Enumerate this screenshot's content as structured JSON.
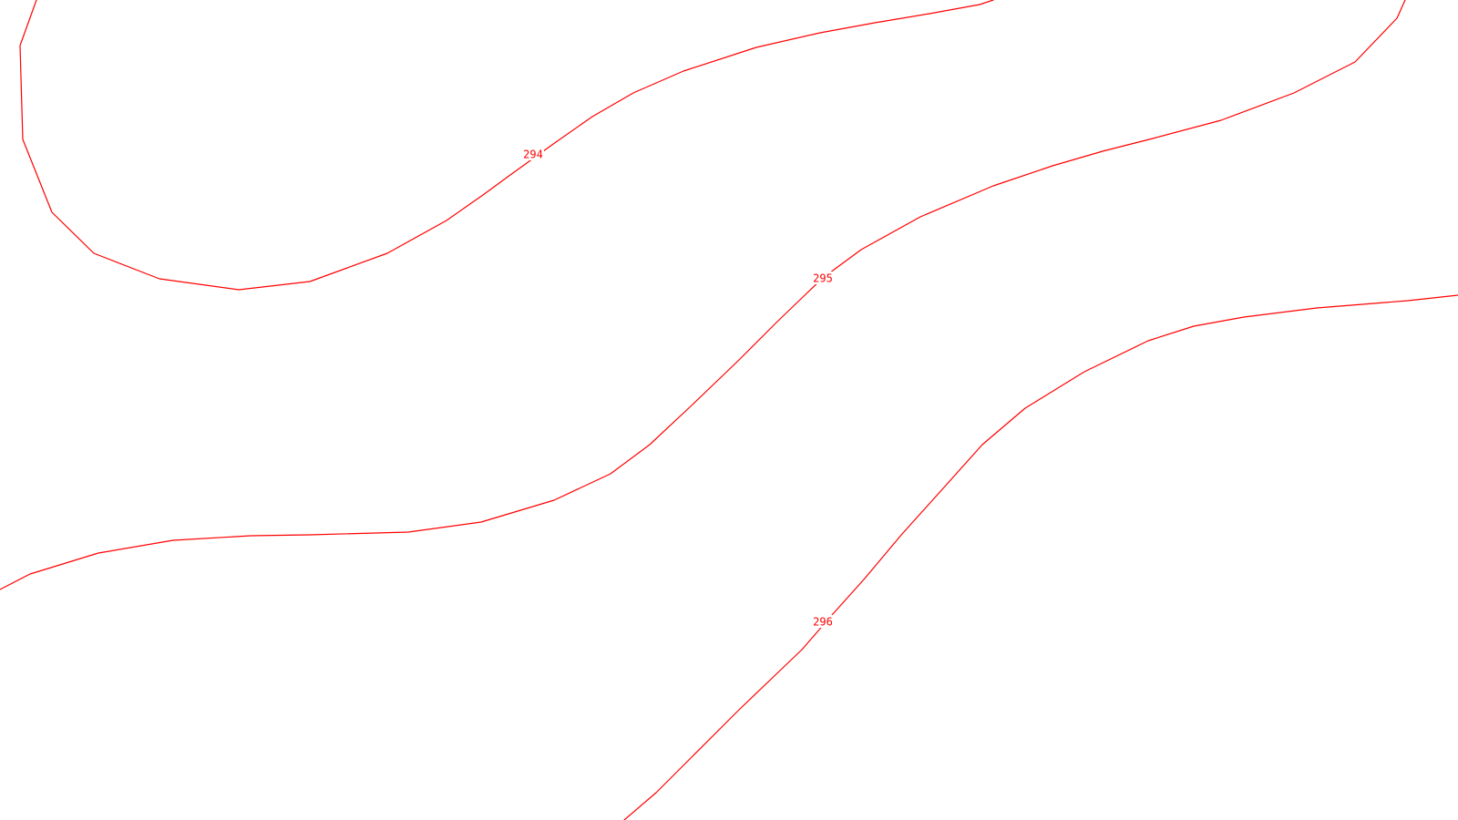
{
  "map": {
    "background_color": "#ffffff",
    "contour_color": "#ff0000",
    "contours": [
      {
        "elevation": "294",
        "label": "294"
      },
      {
        "elevation": "295",
        "label": "295"
      },
      {
        "elevation": "296",
        "label": "296"
      }
    ]
  }
}
